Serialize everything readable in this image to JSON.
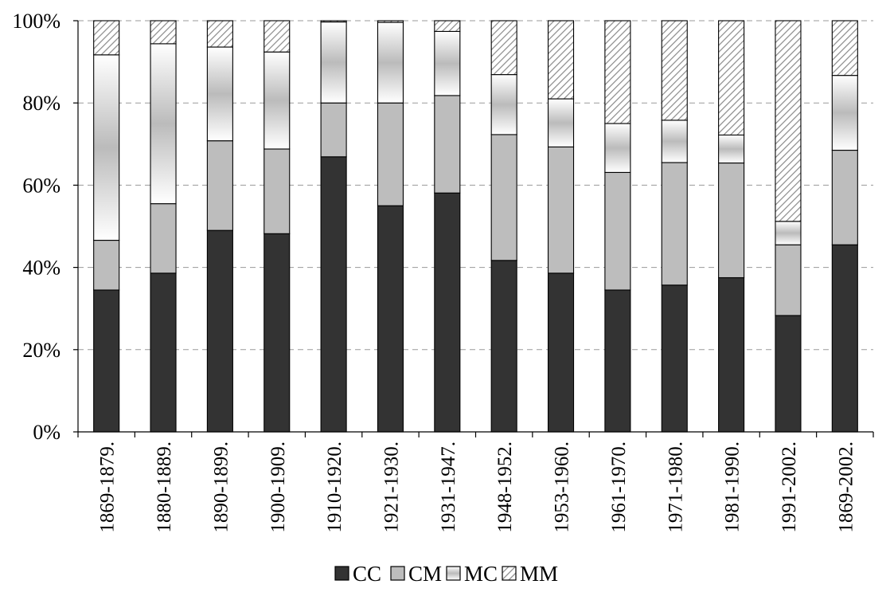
{
  "chart_data": {
    "type": "bar",
    "stacked": true,
    "percent": true,
    "categories": [
      "1869-1879.",
      "1880-1889.",
      "1890-1899.",
      "1900-1909.",
      "1910-1920.",
      "1921-1930.",
      "1931-1947.",
      "1948-1952.",
      "1953-1960.",
      "1961-1970.",
      "1971-1980.",
      "1981-1990.",
      "1991-2002.",
      "1869-2002."
    ],
    "series": [
      {
        "name": "CC",
        "color": "#333333",
        "fill": "solid",
        "values": [
          34.5,
          38.6,
          49.0,
          48.2,
          66.9,
          55.0,
          58.1,
          41.7,
          38.6,
          34.5,
          35.7,
          37.5,
          28.3,
          45.5
        ]
      },
      {
        "name": "CM",
        "color": "#bdbdbd",
        "fill": "solid",
        "values": [
          12.1,
          16.9,
          21.8,
          20.6,
          13.1,
          25.0,
          23.7,
          30.6,
          30.7,
          28.6,
          29.8,
          27.9,
          17.2,
          23.0
        ]
      },
      {
        "name": "MC",
        "color": "#ffffff",
        "fill": "gradient",
        "values": [
          45.1,
          38.9,
          22.8,
          23.6,
          19.7,
          19.6,
          15.6,
          14.6,
          11.7,
          11.9,
          10.3,
          6.8,
          5.7,
          18.2
        ]
      },
      {
        "name": "MM",
        "color": "#ffffff",
        "fill": "hatch",
        "values": [
          8.3,
          5.6,
          6.4,
          7.6,
          0.3,
          0.4,
          2.6,
          13.1,
          19.0,
          25.0,
          24.2,
          27.8,
          48.8,
          13.3
        ]
      }
    ],
    "y_ticks": [
      "0%",
      "20%",
      "40%",
      "60%",
      "80%",
      "100%"
    ],
    "ylim": [
      0,
      100
    ],
    "grid": true,
    "legend_position": "bottom-center"
  }
}
